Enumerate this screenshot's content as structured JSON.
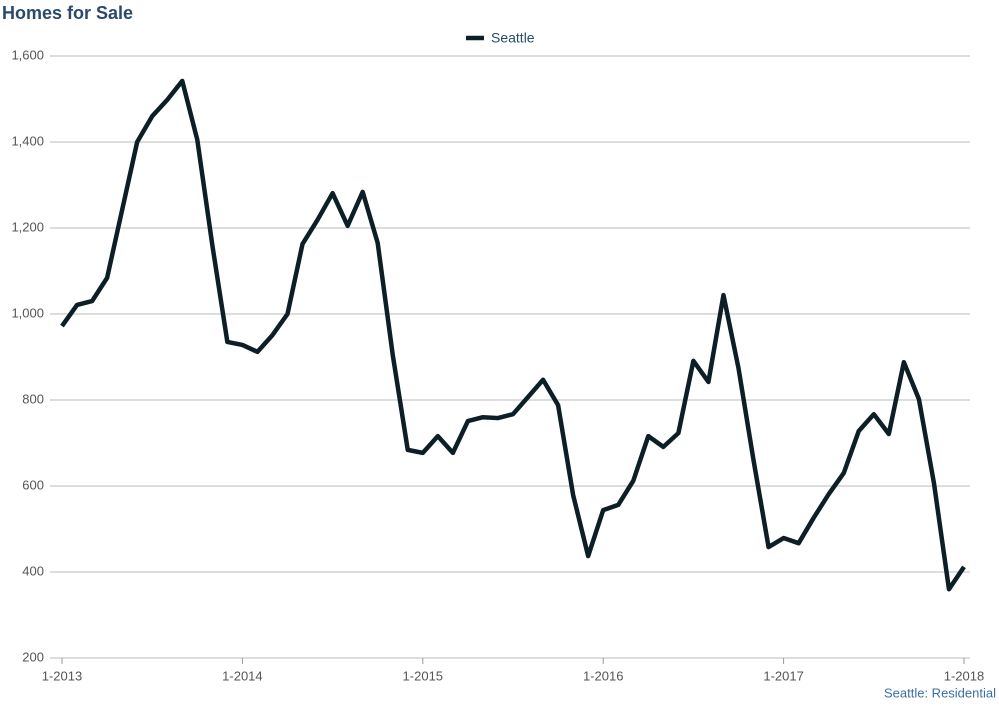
{
  "chart_data": {
    "type": "line",
    "title": "Homes for Sale",
    "note": "Seattle: Residential",
    "categories": [
      "1-2013",
      null,
      null,
      null,
      null,
      null,
      null,
      null,
      null,
      null,
      null,
      null,
      "1-2014",
      null,
      null,
      null,
      null,
      null,
      null,
      null,
      null,
      null,
      null,
      null,
      "1-2015",
      null,
      null,
      null,
      null,
      null,
      null,
      null,
      null,
      null,
      null,
      null,
      "1-2016",
      null,
      null,
      null,
      null,
      null,
      null,
      null,
      null,
      null,
      null,
      null,
      "1-2017",
      null,
      null,
      null,
      null,
      null,
      null,
      null,
      null,
      null,
      null,
      null,
      "1-2018"
    ],
    "series": [
      {
        "name": "Seattle",
        "color": "#0d1f26",
        "values": [
          972,
          1021,
          1030,
          1084,
          1242,
          1400,
          1460,
          1498,
          1542,
          1405,
          1160,
          935,
          928,
          912,
          951,
          1000,
          1163,
          1219,
          1281,
          1205,
          1284,
          1165,
          905,
          684,
          677,
          716,
          677,
          751,
          760,
          758,
          767,
          807,
          847,
          788,
          579,
          437,
          544,
          556,
          612,
          716,
          691,
          723,
          891,
          842,
          1044,
          874,
          660,
          458,
          479,
          467,
          526,
          581,
          630,
          728,
          767,
          721,
          888,
          802,
          607,
          360,
          412
        ]
      }
    ],
    "ylim": [
      200,
      1600
    ],
    "yticks": [
      200,
      400,
      600,
      800,
      {
        "value": 1000,
        "label": "1,000"
      },
      {
        "value": 1200,
        "label": "1,200"
      },
      {
        "value": 1400,
        "label": "1,400"
      },
      {
        "value": 1600,
        "label": "1,600"
      }
    ],
    "grid": true,
    "legend": "top"
  }
}
